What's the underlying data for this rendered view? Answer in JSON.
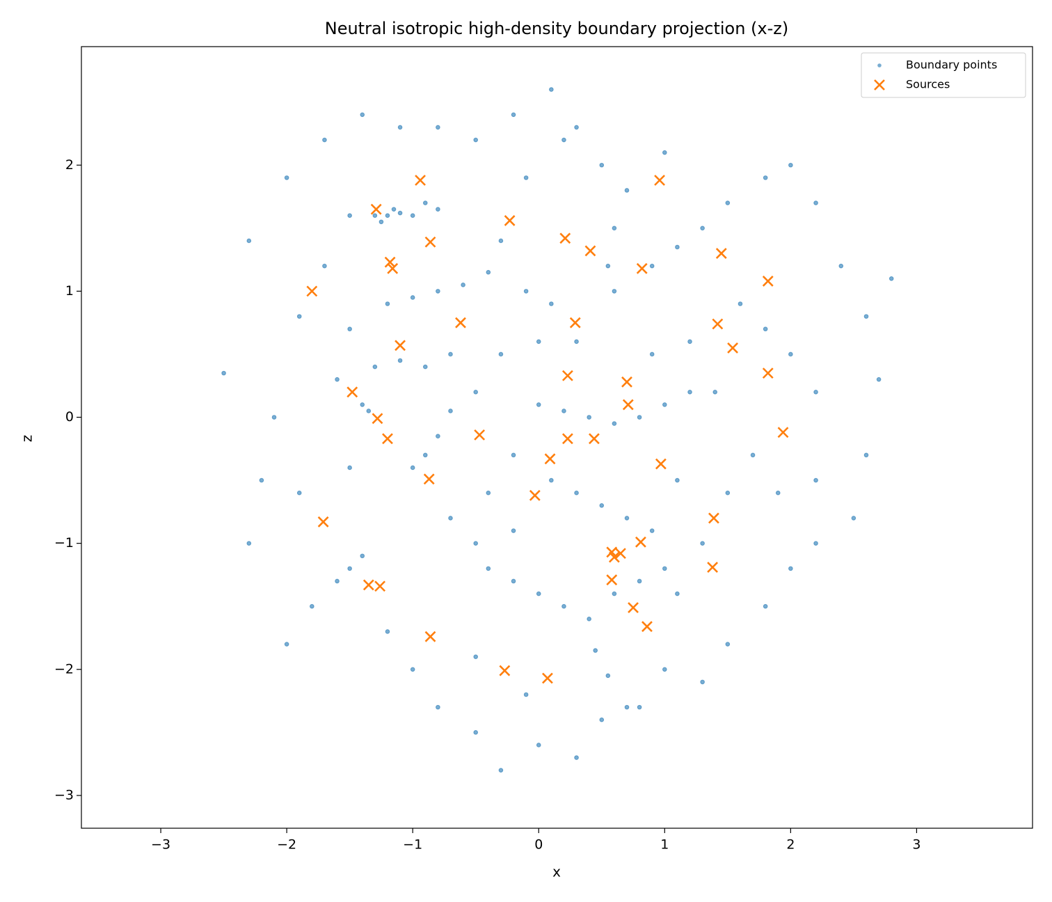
{
  "chart_data": {
    "type": "scatter",
    "title": "Neutral isotropic high-density boundary projection (x-z)",
    "x_label": "x",
    "y_label": "z",
    "xlim": [
      -3.63,
      3.92
    ],
    "ylim": [
      -3.26,
      2.94
    ],
    "xticks": [
      {
        "value": -3,
        "label": "−3"
      },
      {
        "value": -2,
        "label": "−2"
      },
      {
        "value": -1,
        "label": "−1"
      },
      0,
      1,
      2,
      3
    ],
    "yticks": [
      {
        "value": -3,
        "label": "−3"
      },
      {
        "value": -2,
        "label": "−2"
      },
      {
        "value": -1,
        "label": "−1"
      },
      0,
      1,
      2
    ],
    "legend": "upper right",
    "series": [
      {
        "name": "Boundary points",
        "color": "#1f77b4",
        "marker": "circle",
        "x": [
          -2.5,
          -2.3,
          -2.2,
          -2.0,
          -1.9,
          -1.8,
          -1.7,
          -1.6,
          -1.5,
          -1.5,
          -1.4,
          -1.35,
          -1.3,
          -1.25,
          -1.2,
          -1.15,
          -1.1,
          -1.0,
          -0.9,
          -0.8,
          -1.2,
          -1.0,
          -0.8,
          -0.6,
          -0.4,
          -1.3,
          -1.1,
          -0.9,
          -1.0,
          -0.9,
          -0.8,
          -0.7,
          -1.9,
          -1.6,
          -1.4,
          -1.2,
          -1.0,
          -0.8,
          -0.5,
          -0.3,
          0.0,
          0.3,
          0.5,
          0.8,
          1.0,
          1.3,
          1.5,
          1.8,
          2.0,
          2.2,
          2.5,
          2.6,
          2.7,
          2.6,
          2.4,
          2.2,
          2.0,
          1.8,
          1.5,
          1.3,
          1.1,
          0.9,
          1.2,
          1.4,
          1.6,
          1.8,
          2.0,
          2.2,
          1.7,
          1.9,
          2.2,
          1.5,
          0.6,
          0.55,
          0.6,
          0.7,
          0.5,
          0.3,
          0.1,
          -0.2,
          -0.5,
          -0.8,
          -1.1,
          -1.4,
          -0.1,
          -0.3,
          -0.1,
          0.1,
          0.3,
          0.0,
          -0.3,
          -0.5,
          0.0,
          0.2,
          0.4,
          0.6,
          0.8,
          1.0,
          1.2,
          -0.2,
          0.1,
          0.3,
          0.5,
          0.7,
          0.9,
          1.0,
          0.8,
          0.6,
          0.4,
          0.2,
          0.0,
          -0.2,
          -0.4,
          -0.5,
          -0.7,
          -0.4,
          -0.2,
          0.45,
          0.55,
          0.7,
          1.1,
          1.3,
          1.1,
          -2.1,
          -2.3,
          -1.7,
          -2.0,
          2.8,
          -0.5,
          -0.1,
          0.2,
          1.0,
          0.9,
          -0.7,
          -1.5,
          -1.5
        ],
        "values": [
          0.35,
          1.4,
          -0.5,
          1.9,
          0.8,
          -1.5,
          2.2,
          0.3,
          1.6,
          -1.2,
          0.1,
          0.05,
          1.6,
          1.55,
          1.6,
          1.65,
          1.62,
          1.6,
          1.7,
          1.65,
          0.9,
          0.95,
          1.0,
          1.05,
          1.15,
          0.4,
          0.45,
          0.4,
          -0.4,
          -0.3,
          -0.15,
          0.05,
          -0.6,
          -1.3,
          -1.1,
          -1.7,
          -2.0,
          -2.3,
          -2.5,
          -2.8,
          -2.6,
          -2.7,
          -2.4,
          -2.3,
          -2.0,
          -2.1,
          -1.8,
          -1.5,
          -1.2,
          -1.0,
          -0.8,
          -0.3,
          0.3,
          0.8,
          1.2,
          1.7,
          2.0,
          1.9,
          1.7,
          1.5,
          1.35,
          1.2,
          0.6,
          0.2,
          0.9,
          0.7,
          0.5,
          0.2,
          -0.3,
          -0.6,
          -0.5,
          -0.6,
          1.0,
          1.2,
          1.5,
          1.8,
          2.0,
          2.3,
          2.6,
          2.4,
          2.2,
          2.3,
          2.3,
          2.4,
          1.9,
          1.4,
          1.0,
          0.9,
          0.6,
          0.6,
          0.5,
          0.2,
          0.1,
          0.05,
          0.0,
          -0.05,
          0.0,
          0.1,
          0.2,
          -0.3,
          -0.5,
          -0.6,
          -0.7,
          -0.8,
          -0.9,
          -1.2,
          -1.3,
          -1.4,
          -1.6,
          -1.5,
          -1.4,
          -1.3,
          -1.2,
          -1.0,
          -0.8,
          -0.6,
          -0.9,
          -1.85,
          -2.05,
          -2.3,
          -1.4,
          -1.0,
          -0.5,
          0.0,
          -1.0,
          1.2,
          -1.8,
          1.1,
          -1.9,
          -2.2,
          2.2,
          2.1,
          0.5,
          0.5,
          -0.4,
          0.7
        ]
      },
      {
        "name": "Sources",
        "color": "#ff7f0e",
        "marker": "x",
        "x": [
          -0.94,
          -1.29,
          -0.86,
          -0.23,
          -1.18,
          -1.16,
          -1.8,
          0.21,
          0.41,
          0.96,
          0.82,
          1.45,
          1.82,
          1.42,
          1.54,
          1.82,
          1.94,
          -0.62,
          -1.1,
          0.29,
          0.23,
          0.7,
          0.71,
          -1.48,
          -1.28,
          -1.2,
          -0.47,
          0.23,
          0.44,
          0.09,
          0.97,
          -0.87,
          -0.03,
          -1.71,
          1.39,
          0.81,
          0.58,
          0.65,
          0.6,
          0.58,
          1.38,
          -1.35,
          -1.26,
          0.75,
          0.86,
          -0.86,
          -0.27,
          0.07
        ],
        "values": [
          1.88,
          1.65,
          1.39,
          1.56,
          1.23,
          1.18,
          1.0,
          1.42,
          1.32,
          1.88,
          1.18,
          1.3,
          1.08,
          0.74,
          0.55,
          0.35,
          -0.12,
          0.75,
          0.57,
          0.75,
          0.33,
          0.28,
          0.1,
          0.2,
          -0.01,
          -0.17,
          -0.14,
          -0.17,
          -0.17,
          -0.33,
          -0.37,
          -0.49,
          -0.62,
          -0.83,
          -0.8,
          -0.99,
          -1.07,
          -1.08,
          -1.11,
          -1.29,
          -1.19,
          -1.33,
          -1.34,
          -1.51,
          -1.66,
          -1.74,
          -2.01,
          -2.07
        ]
      }
    ]
  }
}
